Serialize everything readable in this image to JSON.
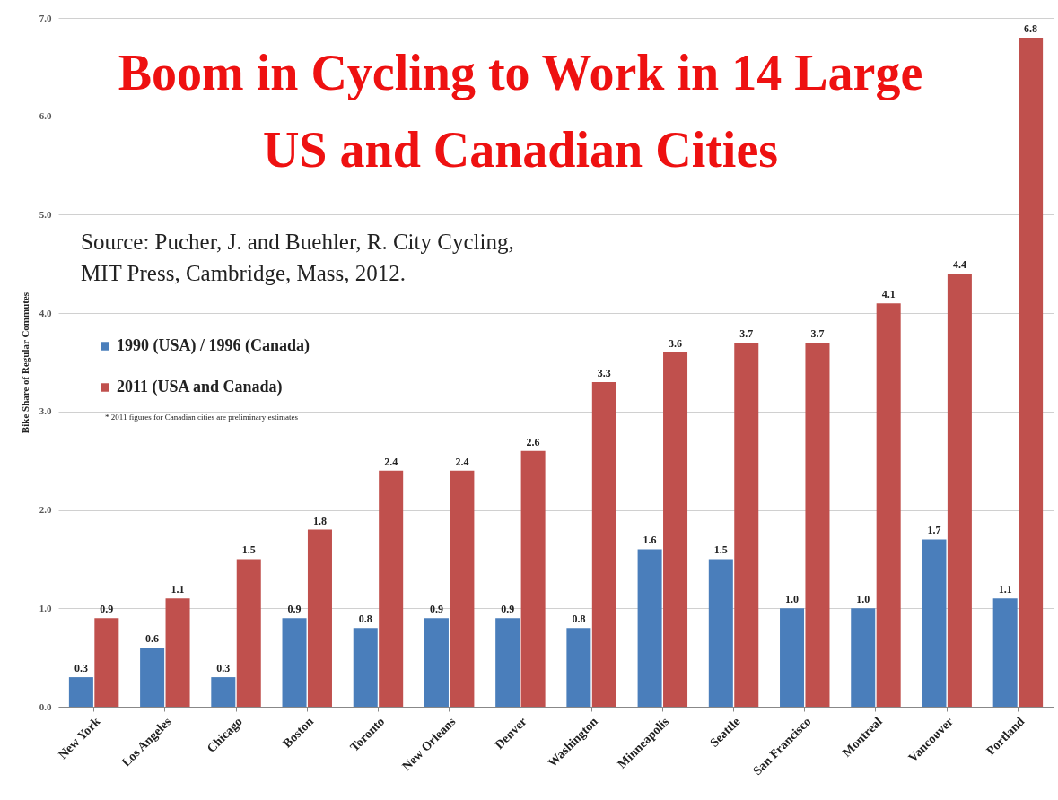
{
  "chart_data": {
    "type": "bar",
    "title": "Boom in Cycling to Work in 14 Large US and Canadian Cities",
    "ylabel": "Bike Share of Regular Commutes",
    "annotations": [
      "Source:  Pucher, J. and  Buehler, R. City Cycling,",
      "MIT Press, Cambridge, Mass, 2012.",
      "* 2011 figures for Canadian cities are preliminary estimates"
    ],
    "categories": [
      "New York",
      "Los Angeles",
      "Chicago",
      "Boston",
      "Toronto",
      "New Orleans",
      "Denver",
      "Washington",
      "Minneapolis",
      "Seattle",
      "San Francisco",
      "Montreal",
      "Vancouver",
      "Portland"
    ],
    "series": [
      {
        "name": "1990 (USA) / 1996 (Canada)",
        "color": "#4a7ebb",
        "values": [
          0.3,
          0.6,
          0.3,
          0.9,
          0.8,
          0.9,
          0.9,
          0.8,
          1.6,
          1.5,
          1.0,
          1.0,
          1.7,
          1.1
        ],
        "value_labels": [
          "0.3",
          "0.6",
          "0.3",
          "0.9",
          "0.8",
          "0.9",
          "0.9",
          "0.8",
          "1.6",
          "1.5",
          "1.0",
          "1.0",
          "1.7",
          "1.1"
        ]
      },
      {
        "name": "2011 (USA and Canada)",
        "color": "#c0504d",
        "values": [
          0.9,
          1.1,
          1.5,
          1.8,
          2.4,
          2.4,
          2.6,
          3.3,
          3.6,
          3.7,
          3.7,
          4.1,
          4.4,
          6.8
        ],
        "value_labels": [
          "0.9",
          "1.1",
          "1.5",
          "1.8",
          "2.4",
          "2.4",
          "2.6",
          "3.3",
          "3.6",
          "3.7",
          "3.7",
          "4.1",
          "4.4",
          "6.8"
        ]
      }
    ],
    "ylim": [
      0,
      7
    ],
    "yticks": [
      {
        "value": 0,
        "label": "0.0"
      },
      {
        "value": 1,
        "label": "1.0"
      },
      {
        "value": 2,
        "label": "2.0"
      },
      {
        "value": 3,
        "label": "3.0"
      },
      {
        "value": 4,
        "label": "4.0"
      },
      {
        "value": 5,
        "label": "5.0"
      },
      {
        "value": 6,
        "label": "6.0"
      },
      {
        "value": 7,
        "label": "7.0"
      }
    ],
    "grid": "y",
    "legend": "left"
  }
}
